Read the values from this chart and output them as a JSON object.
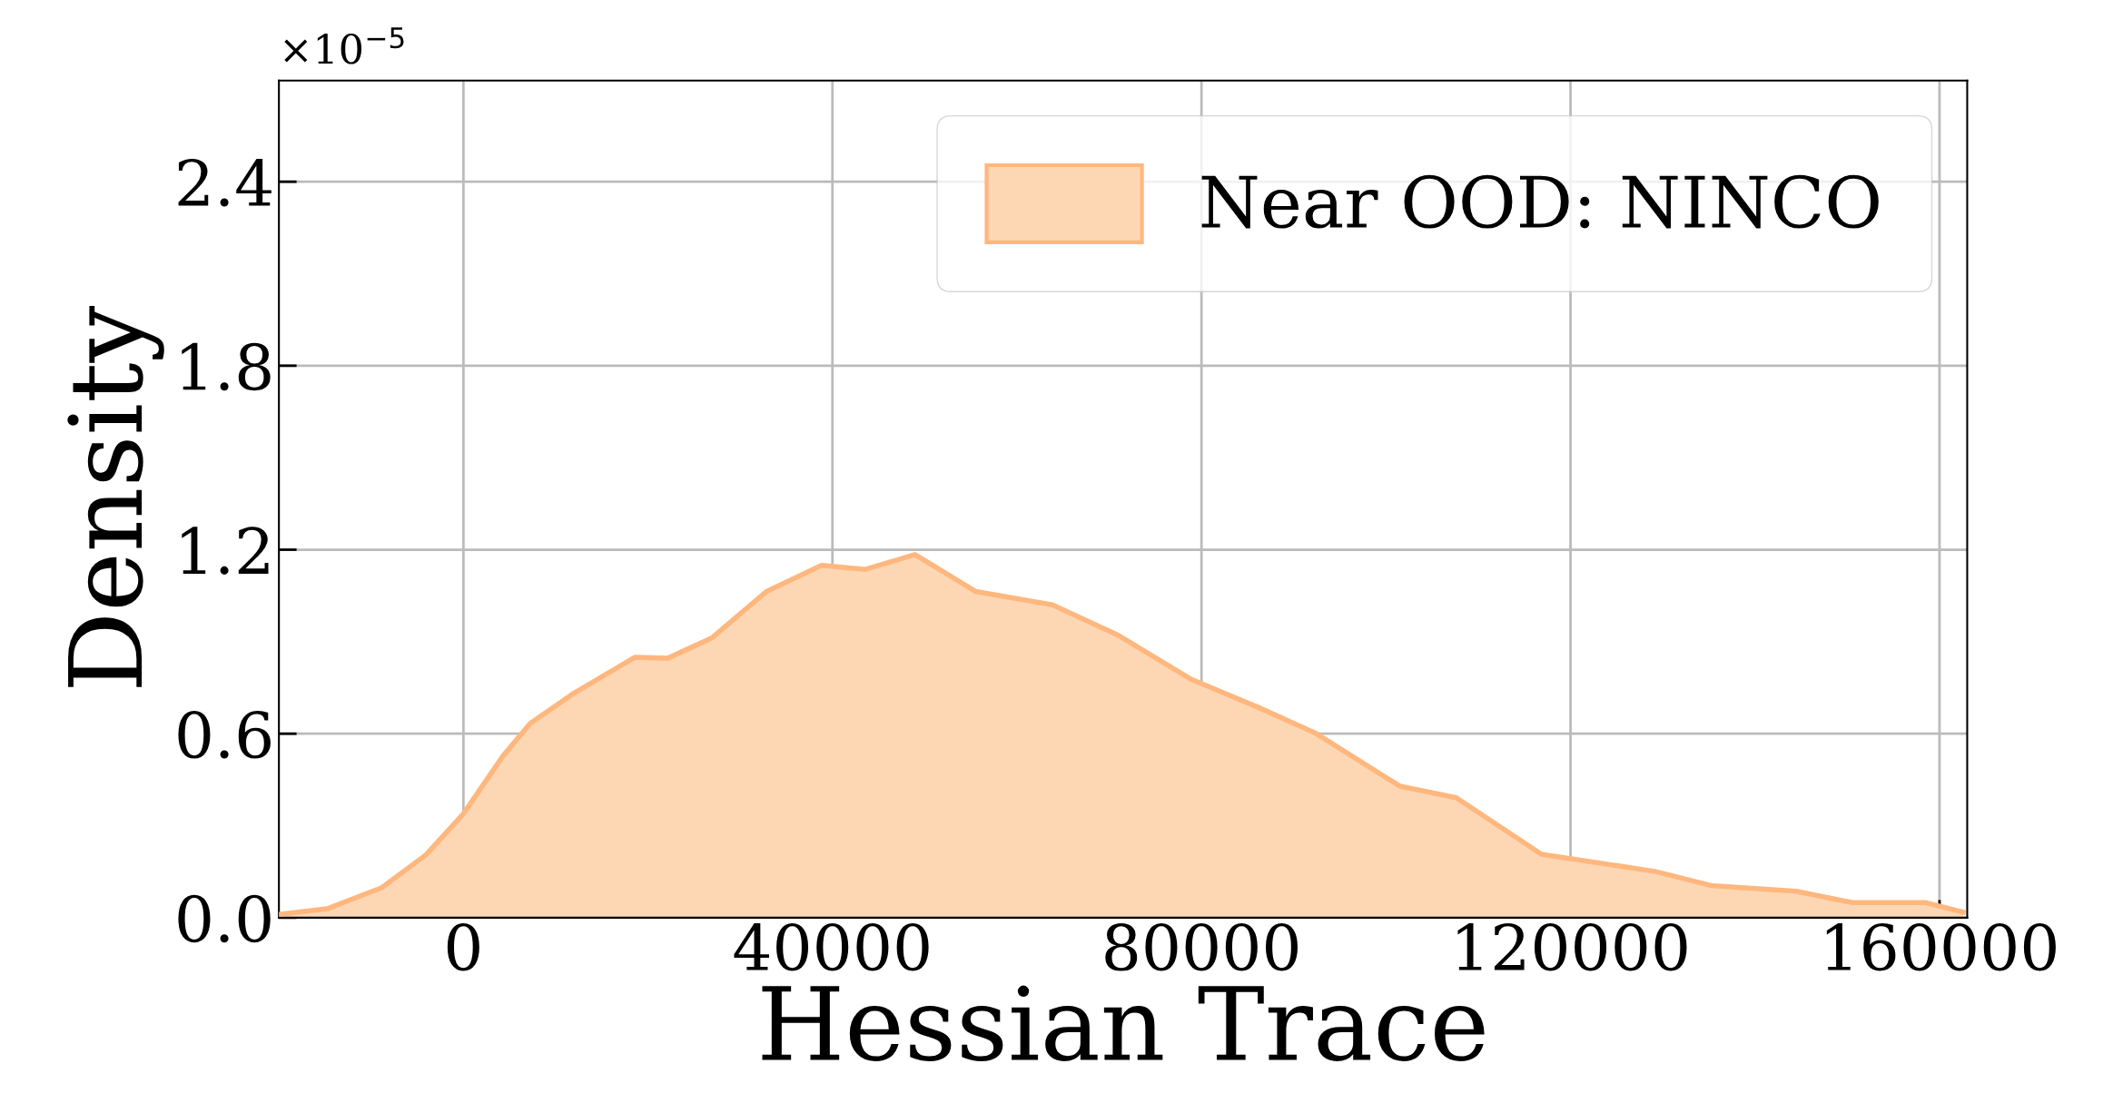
{
  "chart_data": {
    "type": "area",
    "xlabel": "Hessian Trace",
    "ylabel": "Density",
    "annotations": [
      "×10$^{−5}$"
    ],
    "x": [
      -20000,
      -14780,
      -8840,
      -4060,
      0,
      4280,
      7250,
      12020,
      18570,
      22150,
      26910,
      32870,
      38820,
      43580,
      48940,
      55500,
      63840,
      70980,
      78770,
      86140,
      92280,
      101500,
      107620,
      116850,
      129140,
      135230,
      144470,
      150560,
      158530,
      162560
    ],
    "series": [
      {
        "name": "Near OOD: NINCO",
        "color": "#fdd7b4",
        "values": [
          0.011,
          0.029,
          0.098,
          0.205,
          0.339,
          0.527,
          0.634,
          0.733,
          0.849,
          0.846,
          0.912,
          1.064,
          1.149,
          1.136,
          1.184,
          1.064,
          1.02,
          0.921,
          0.779,
          0.686,
          0.603,
          0.429,
          0.391,
          0.207,
          0.151,
          0.105,
          0.086,
          0.049,
          0.049,
          0.018
        ]
      }
    ],
    "xlim": [
      -20000,
      163000
    ],
    "xticks": [
      0,
      40000,
      80000,
      120000,
      160000
    ],
    "ylim": [
      0,
      2.73
    ],
    "yticks": [
      {
        "value": 0,
        "label": "0.0"
      },
      0.6,
      1.2,
      1.8,
      2.4
    ],
    "grid": true,
    "legend": "top right"
  }
}
